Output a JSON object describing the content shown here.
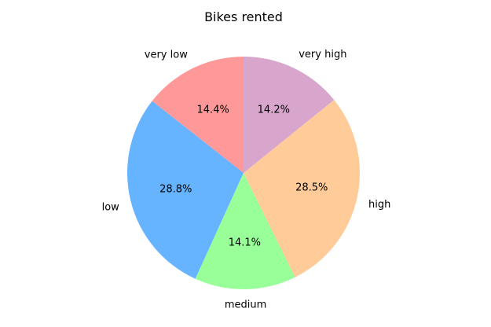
{
  "chart_data": {
    "type": "pie",
    "title": "Bikes rented",
    "start_angle_deg": 90,
    "direction": "counterclockwise",
    "slices": [
      {
        "label": "very low",
        "value": 14.4,
        "pct_label": "14.4%",
        "color": "#ff9999"
      },
      {
        "label": "low",
        "value": 28.8,
        "pct_label": "28.8%",
        "color": "#66b3ff"
      },
      {
        "label": "medium",
        "value": 14.1,
        "pct_label": "14.1%",
        "color": "#99ff99"
      },
      {
        "label": "high",
        "value": 28.5,
        "pct_label": "28.5%",
        "color": "#ffcc99"
      },
      {
        "label": "very high",
        "value": 14.2,
        "pct_label": "14.2%",
        "color": "#d8a6cc"
      }
    ]
  }
}
